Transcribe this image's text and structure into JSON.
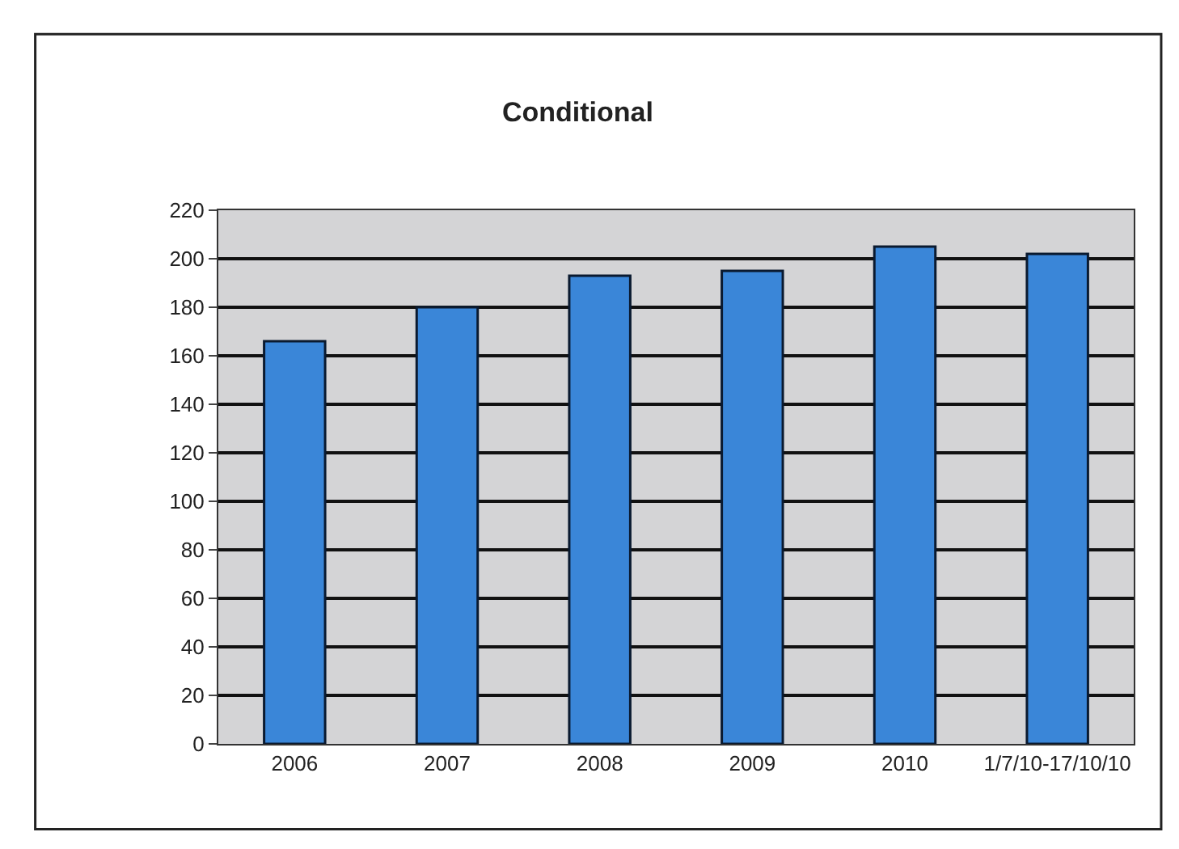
{
  "chart_data": {
    "type": "bar",
    "title": "Conditional",
    "categories": [
      "2006",
      "2007",
      "2008",
      "2009",
      "2010",
      "1/7/10-17/10/10"
    ],
    "values": [
      166,
      180,
      193,
      195,
      205,
      202
    ],
    "color": "#3a86d8",
    "ylim": [
      0,
      220
    ],
    "yticks": [
      0,
      20,
      40,
      60,
      80,
      100,
      120,
      140,
      160,
      180,
      200,
      220
    ],
    "grid": "y"
  }
}
